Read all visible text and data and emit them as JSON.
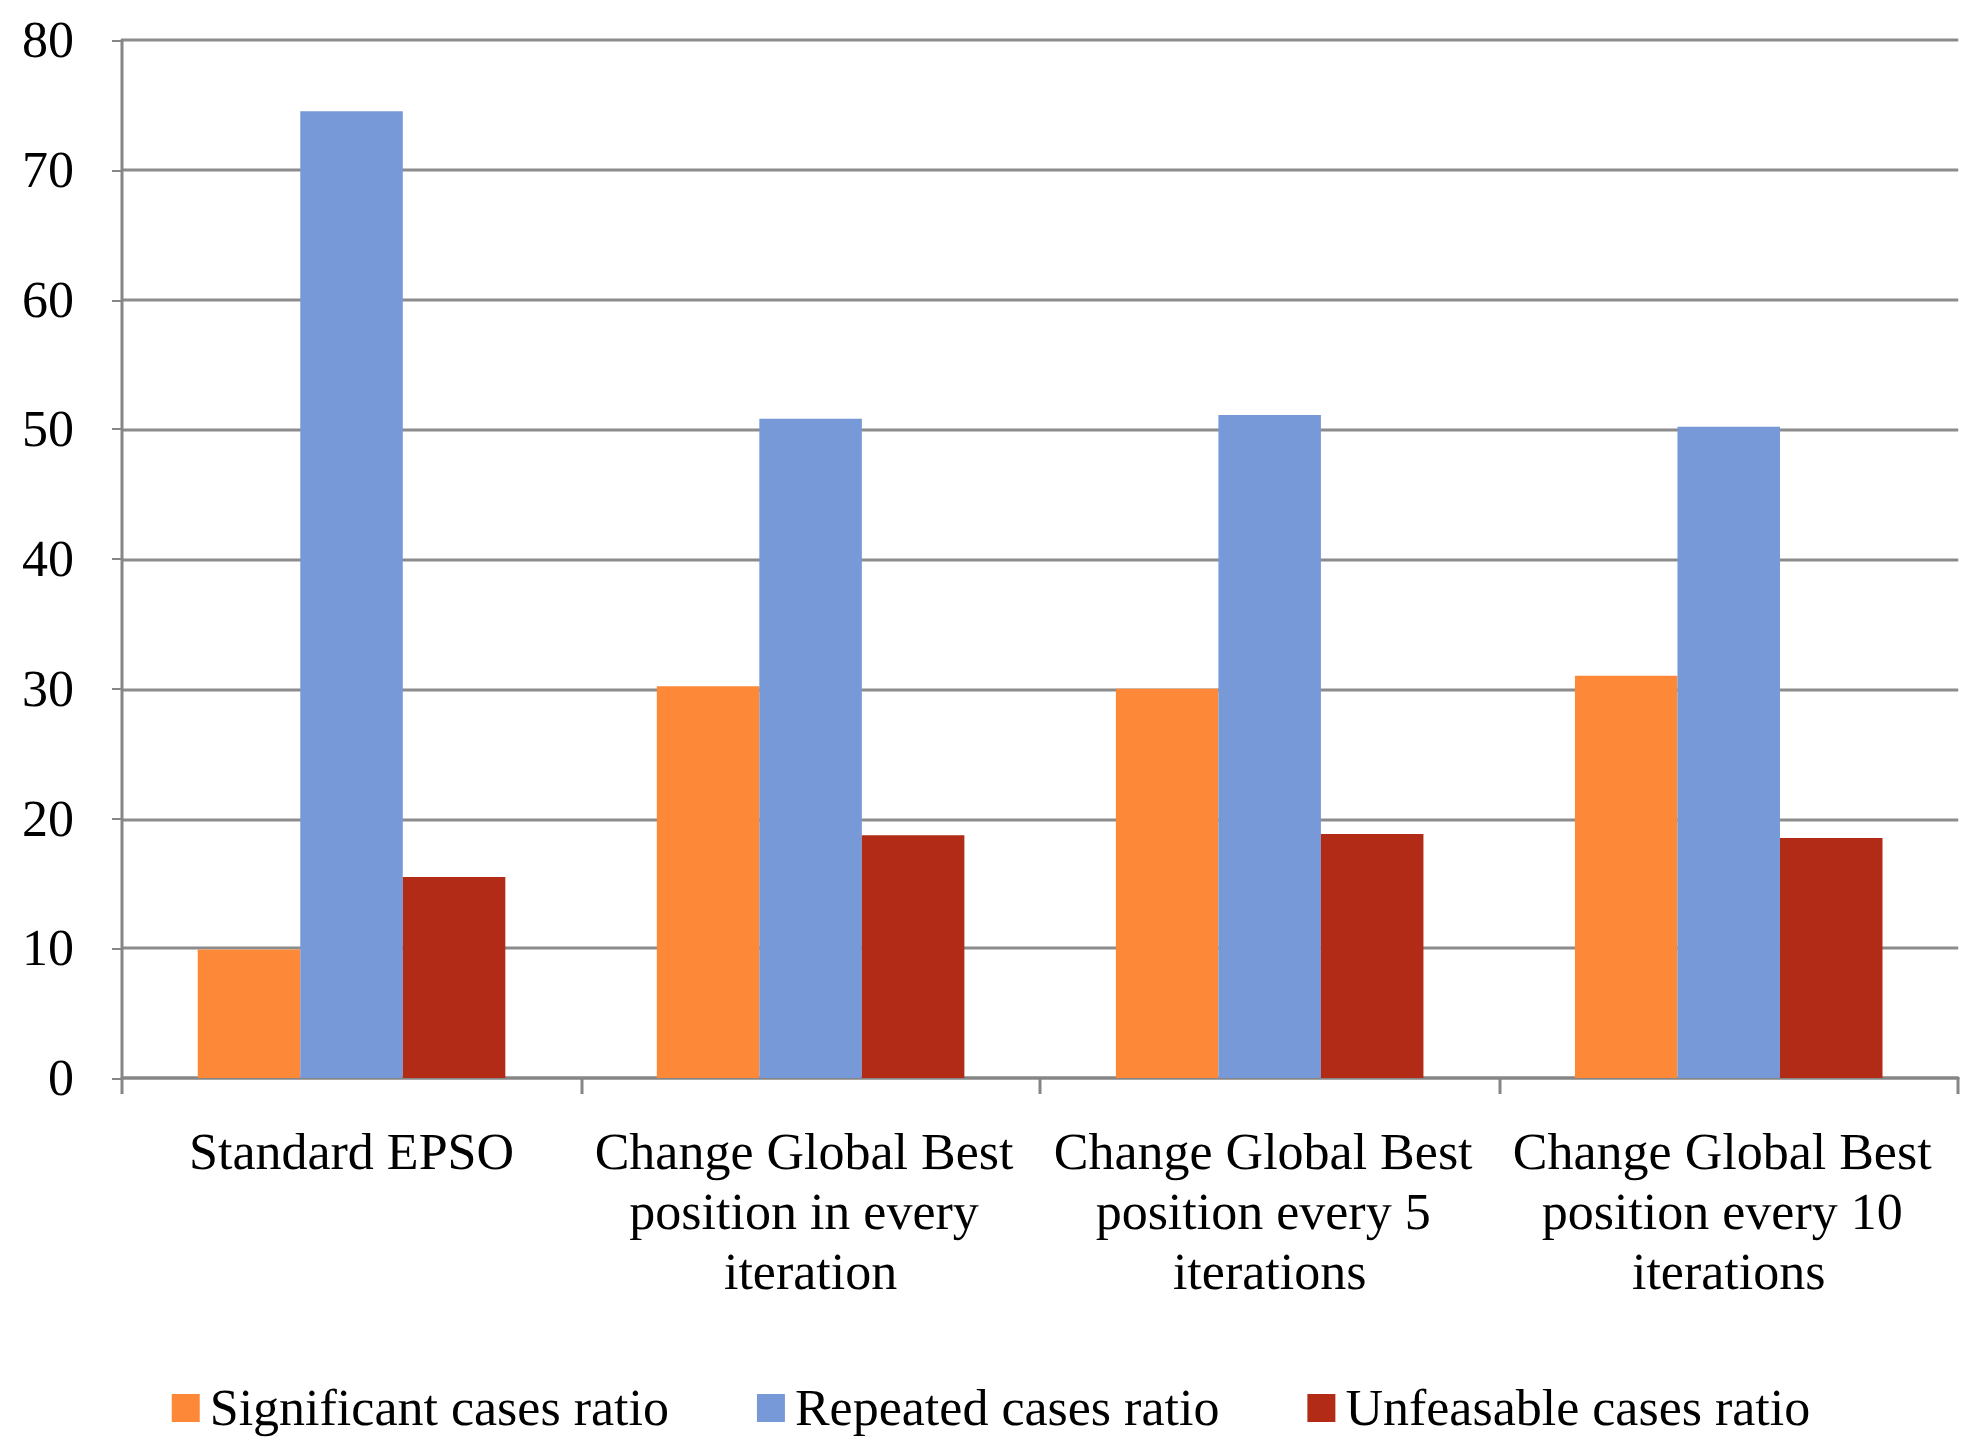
{
  "chart_data": {
    "type": "bar",
    "categories": [
      "Standard EPSO",
      "Change Global Best position in every iteration",
      "Change Global Best position every 5 iterations",
      "Change Global Best position every 10 iterations"
    ],
    "series": [
      {
        "name": "Significant cases ratio",
        "color": "#fd8838",
        "values": [
          9.9,
          30.2,
          30.0,
          31.0
        ]
      },
      {
        "name": "Repeated cases ratio",
        "color": "#7799d8",
        "values": [
          74.5,
          50.8,
          51.1,
          50.2
        ]
      },
      {
        "name": "Unfeasable cases ratio",
        "color": "#b22b17",
        "values": [
          15.5,
          18.7,
          18.8,
          18.5
        ]
      }
    ],
    "ylim": [
      0,
      80
    ],
    "yticks": [
      0,
      10,
      20,
      30,
      40,
      50,
      60,
      70,
      80
    ],
    "grid": "y",
    "legend": "bottom"
  }
}
